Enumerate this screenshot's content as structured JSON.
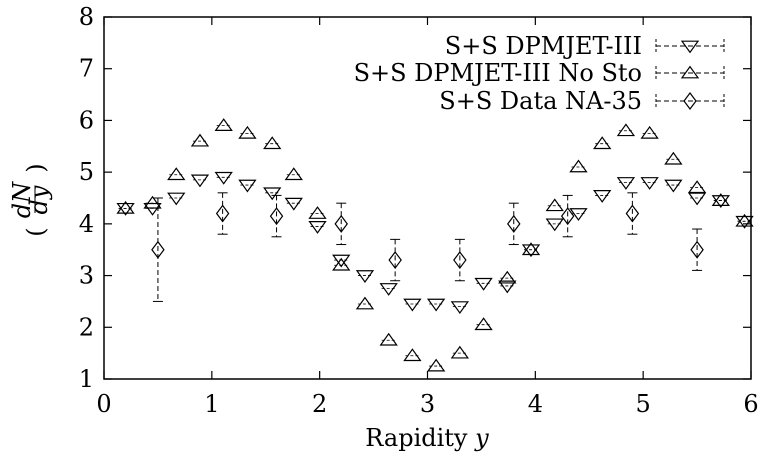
{
  "chart_data": {
    "type": "scatter",
    "xlabel": "Rapidity",
    "xlabel_var": "y",
    "ylabel": "(dN/dy)",
    "ylabel_num": "dN",
    "ylabel_den": "dy",
    "xlim": [
      0,
      6
    ],
    "ylim": [
      1,
      8
    ],
    "xticks": [
      "0",
      "1",
      "2",
      "3",
      "4",
      "5",
      "6"
    ],
    "yticks": [
      "1",
      "2",
      "3",
      "4",
      "5",
      "6",
      "7",
      "8"
    ],
    "grid": false,
    "legend_position": "top-right",
    "series": [
      {
        "name": "S+S DPMJET-III",
        "marker": "triangle-down",
        "x": [
          0.2,
          0.45,
          0.67,
          0.89,
          1.11,
          1.33,
          1.56,
          1.76,
          1.98,
          2.2,
          2.42,
          2.64,
          2.86,
          3.08,
          3.3,
          3.52,
          3.74,
          3.96,
          4.18,
          4.4,
          4.62,
          4.84,
          5.06,
          5.28,
          5.5,
          5.72,
          5.94
        ],
        "y": [
          4.3,
          4.3,
          4.5,
          4.85,
          4.9,
          4.75,
          4.6,
          4.4,
          3.95,
          3.3,
          3.0,
          2.75,
          2.45,
          2.45,
          2.4,
          2.85,
          2.8,
          3.5,
          4.0,
          4.2,
          4.55,
          4.8,
          4.8,
          4.75,
          4.5,
          4.45,
          4.05
        ]
      },
      {
        "name": "S+S DPMJET-III No Sto",
        "marker": "triangle-up",
        "x": [
          0.2,
          0.45,
          0.67,
          0.89,
          1.11,
          1.33,
          1.56,
          1.76,
          1.98,
          2.2,
          2.42,
          2.64,
          2.86,
          3.08,
          3.3,
          3.52,
          3.74,
          3.96,
          4.18,
          4.4,
          4.62,
          4.84,
          5.06,
          5.28,
          5.5,
          5.72,
          5.94
        ],
        "y": [
          4.3,
          4.4,
          4.95,
          5.6,
          5.9,
          5.75,
          5.55,
          4.95,
          4.2,
          3.2,
          2.45,
          1.75,
          1.45,
          1.25,
          1.5,
          2.05,
          2.95,
          3.5,
          4.35,
          5.1,
          5.55,
          5.8,
          5.75,
          5.25,
          4.7,
          4.45,
          4.05
        ]
      },
      {
        "name": "S+S Data NA-35",
        "marker": "diamond",
        "x": [
          0.5,
          1.1,
          1.6,
          2.2,
          2.7,
          3.3,
          3.8,
          4.3,
          4.9,
          5.5
        ],
        "y": [
          3.5,
          4.2,
          4.15,
          4.0,
          3.3,
          3.3,
          4.0,
          4.15,
          4.2,
          3.5
        ],
        "yerr": [
          1.0,
          0.4,
          0.4,
          0.4,
          0.4,
          0.4,
          0.4,
          0.4,
          0.4,
          0.4
        ]
      }
    ]
  }
}
